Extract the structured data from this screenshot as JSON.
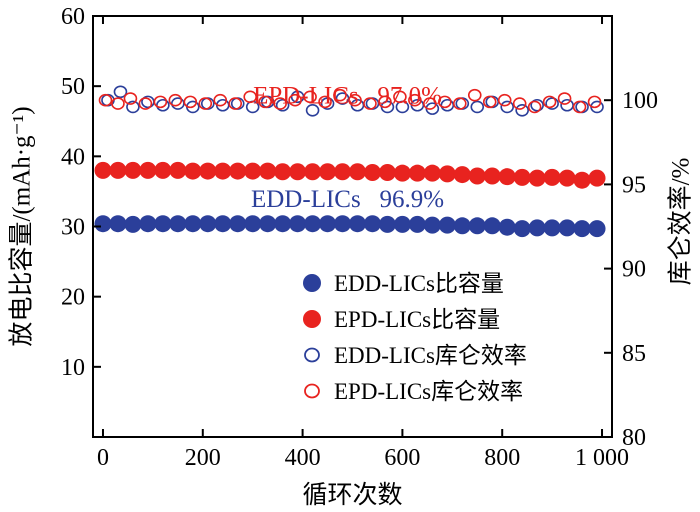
{
  "chart_data": {
    "type": "scatter",
    "xlabel": "循环次数",
    "ylabel_left": "放电比容量/(mAh·g⁻¹)",
    "ylabel_right": "库仑效率/%",
    "xlim": [
      -20,
      1020
    ],
    "ylim_left": [
      0,
      60
    ],
    "ylim_right": [
      80,
      105
    ],
    "x_ticks": [
      0,
      200,
      400,
      600,
      800,
      1000
    ],
    "x_tick_labels": [
      "0",
      "200",
      "400",
      "600",
      "800",
      "1 000"
    ],
    "yleft_ticks": [
      10,
      20,
      30,
      40,
      50,
      60
    ],
    "yleft_tick_labels": [
      "10",
      "20",
      "30",
      "40",
      "50",
      "60"
    ],
    "yright_ticks": [
      80,
      85,
      90,
      95,
      100
    ],
    "yright_tick_labels": [
      "80",
      "85",
      "90",
      "95",
      "100"
    ],
    "annotations": [
      {
        "text": "EPD-LICs   97.0%",
        "color": "#e8231f",
        "x": 490,
        "y": 47.5
      },
      {
        "text": "EDD-LICs   96.9%",
        "color": "#2b3f9a",
        "x": 490,
        "y": 32.8
      }
    ],
    "legend": {
      "placement": "bottom-right",
      "entries": [
        {
          "label": "EDD-LICs比容量",
          "color": "#2b3f9a",
          "filled": true
        },
        {
          "label": "EPD-LICs比容量",
          "color": "#e8231f",
          "filled": true
        },
        {
          "label": "EDD-LICs库仑效率",
          "color": "#2b3f9a",
          "filled": false
        },
        {
          "label": "EPD-LICs库仑效率",
          "color": "#e8231f",
          "filled": false
        }
      ]
    },
    "series": [
      {
        "label": "EDD-LICs比容量",
        "axis": "left",
        "color": "#2b3f9a",
        "filled": true,
        "x": [
          0,
          30,
          60,
          90,
          120,
          150,
          180,
          210,
          240,
          270,
          300,
          330,
          360,
          390,
          420,
          450,
          480,
          510,
          540,
          570,
          600,
          630,
          660,
          690,
          720,
          750,
          780,
          810,
          840,
          870,
          900,
          930,
          960,
          990
        ],
        "y": [
          30.4,
          30.4,
          30.3,
          30.4,
          30.4,
          30.4,
          30.4,
          30.4,
          30.4,
          30.4,
          30.4,
          30.4,
          30.4,
          30.4,
          30.4,
          30.4,
          30.4,
          30.4,
          30.4,
          30.3,
          30.3,
          30.3,
          30.2,
          30.2,
          30.1,
          30.1,
          30.1,
          29.9,
          29.7,
          29.8,
          29.8,
          29.8,
          29.7,
          29.7
        ]
      },
      {
        "label": "EPD-LICs比容量",
        "axis": "left",
        "color": "#e8231f",
        "filled": true,
        "x": [
          0,
          30,
          60,
          90,
          120,
          150,
          180,
          210,
          240,
          270,
          300,
          330,
          360,
          390,
          420,
          450,
          480,
          510,
          540,
          570,
          600,
          630,
          660,
          690,
          720,
          750,
          780,
          810,
          840,
          870,
          900,
          930,
          960,
          990
        ],
        "y": [
          38.0,
          38.0,
          38.0,
          38.0,
          38.0,
          38.0,
          37.9,
          37.9,
          37.9,
          37.9,
          37.9,
          37.9,
          37.8,
          37.8,
          37.8,
          37.8,
          37.8,
          37.8,
          37.7,
          37.7,
          37.6,
          37.6,
          37.6,
          37.5,
          37.4,
          37.2,
          37.2,
          37.1,
          37.0,
          36.9,
          37.0,
          36.9,
          36.6,
          36.9
        ]
      },
      {
        "label": "EDD-LICs库仑效率",
        "axis": "right",
        "color": "#2b3f9a",
        "filled": false,
        "x": [
          10,
          35,
          60,
          90,
          120,
          150,
          180,
          210,
          240,
          270,
          300,
          330,
          360,
          390,
          420,
          450,
          480,
          510,
          540,
          570,
          600,
          630,
          660,
          690,
          720,
          750,
          780,
          810,
          840,
          870,
          900,
          930,
          960,
          990
        ],
        "y": [
          100.0,
          100.5,
          99.6,
          99.9,
          99.7,
          99.8,
          99.6,
          99.8,
          99.7,
          99.8,
          99.6,
          99.9,
          99.7,
          100.2,
          99.4,
          99.8,
          100.1,
          99.7,
          99.8,
          99.6,
          99.6,
          99.7,
          99.5,
          99.7,
          99.8,
          99.6,
          99.9,
          99.6,
          99.4,
          99.7,
          99.8,
          99.7,
          99.6,
          99.6
        ]
      },
      {
        "label": "EPD-LICs库仑效率",
        "axis": "right",
        "color": "#e8231f",
        "filled": false,
        "x": [
          5,
          30,
          55,
          85,
          115,
          145,
          175,
          205,
          235,
          265,
          295,
          325,
          355,
          385,
          415,
          445,
          475,
          505,
          535,
          565,
          595,
          625,
          655,
          685,
          715,
          745,
          775,
          805,
          835,
          865,
          895,
          925,
          955,
          985
        ],
        "y": [
          100.0,
          99.8,
          100.1,
          99.8,
          99.9,
          100.0,
          99.9,
          99.8,
          100.0,
          99.8,
          100.2,
          99.9,
          99.8,
          100.0,
          100.2,
          99.9,
          100.3,
          100.0,
          99.8,
          99.9,
          100.2,
          100.0,
          99.8,
          99.9,
          99.8,
          100.3,
          99.9,
          100.0,
          99.8,
          99.6,
          99.9,
          100.1,
          99.6,
          99.9
        ]
      }
    ]
  }
}
